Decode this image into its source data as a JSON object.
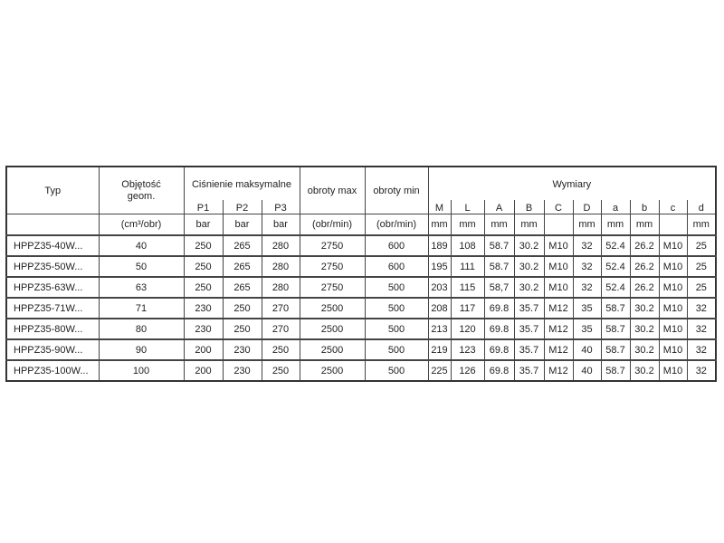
{
  "headers": {
    "typ": "Typ",
    "objetosc": "Objętość geom.",
    "cisnienie": "Ciśnienie maksymalne",
    "obroty_max": "obroty max",
    "obroty_min": "obroty min",
    "wymiary": "Wymiary",
    "pressure_cols": [
      "P1",
      "P2",
      "P3"
    ],
    "dim_cols": [
      "M",
      "L",
      "A",
      "B",
      "C",
      "D",
      "a",
      "b",
      "c",
      "d"
    ]
  },
  "units": {
    "typ": "",
    "objetosc": "(cm³/obr)",
    "pressure": [
      "bar",
      "bar",
      "bar"
    ],
    "obroty_max": "(obr/min)",
    "obroty_min": "(obr/min)",
    "dims": [
      "mm",
      "mm",
      "mm",
      "mm",
      "",
      "mm",
      "mm",
      "mm",
      "",
      "mm"
    ]
  },
  "rows": [
    [
      "HPPZ35-40W...",
      "40",
      "250",
      "265",
      "280",
      "2750",
      "600",
      "189",
      "108",
      "58.7",
      "30.2",
      "M10",
      "32",
      "52.4",
      "26.2",
      "M10",
      "25"
    ],
    [
      "HPPZ35-50W...",
      "50",
      "250",
      "265",
      "280",
      "2750",
      "600",
      "195",
      "111",
      "58.7",
      "30.2",
      "M10",
      "32",
      "52.4",
      "26.2",
      "M10",
      "25"
    ],
    [
      "HPPZ35-63W...",
      "63",
      "250",
      "265",
      "280",
      "2750",
      "500",
      "203",
      "115",
      "58,7",
      "30.2",
      "M10",
      "32",
      "52.4",
      "26.2",
      "M10",
      "25"
    ],
    [
      "HPPZ35-71W...",
      "71",
      "230",
      "250",
      "270",
      "2500",
      "500",
      "208",
      "117",
      "69.8",
      "35.7",
      "M12",
      "35",
      "58.7",
      "30.2",
      "M10",
      "32"
    ],
    [
      "HPPZ35-80W...",
      "80",
      "230",
      "250",
      "270",
      "2500",
      "500",
      "213",
      "120",
      "69.8",
      "35.7",
      "M12",
      "35",
      "58.7",
      "30.2",
      "M10",
      "32"
    ],
    [
      "HPPZ35-90W...",
      "90",
      "200",
      "230",
      "250",
      "2500",
      "500",
      "219",
      "123",
      "69.8",
      "35.7",
      "M12",
      "40",
      "58.7",
      "30.2",
      "M10",
      "32"
    ],
    [
      "HPPZ35-100W...",
      "100",
      "200",
      "230",
      "250",
      "2500",
      "500",
      "225",
      "126",
      "69.8",
      "35.7",
      "M12",
      "40",
      "58.7",
      "30.2",
      "M10",
      "32"
    ]
  ]
}
